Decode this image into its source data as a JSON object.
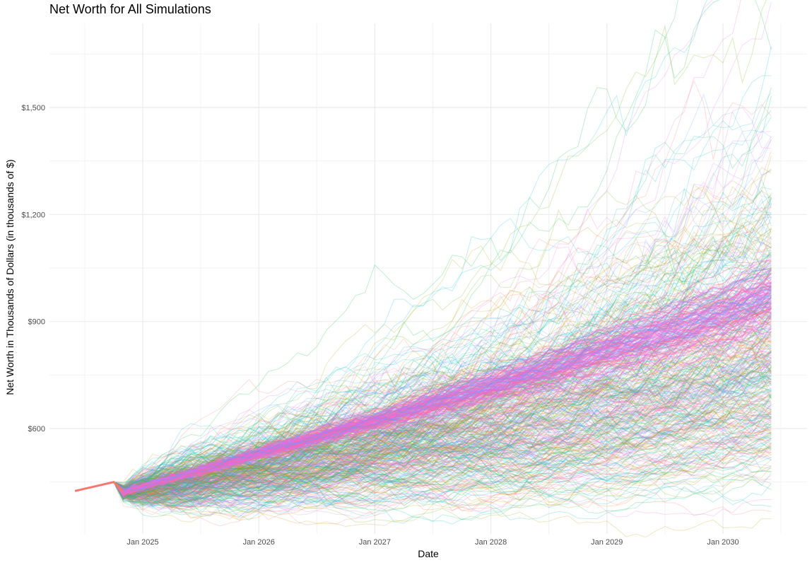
{
  "chart_data": {
    "type": "line",
    "title": "Net Worth for All Simulations",
    "xlabel": "Date",
    "ylabel": "Net Worth in Thousands of Dollars (in thousands of $)",
    "x_ticks": [
      "Jan 2025",
      "Jan 2026",
      "Jan 2027",
      "Jan 2028",
      "Jan 2029",
      "Jan 2030"
    ],
    "y_ticks": [
      "$600",
      "$900",
      "$1,200",
      "$1,500"
    ],
    "y_tick_values": [
      600,
      900,
      1200,
      1500
    ],
    "x_range": [
      "2024-06",
      "2030-07"
    ],
    "ylim": [
      380,
      1700
    ],
    "grid": true,
    "legend": "none",
    "num_simulations_shown": "hundreds (approximate; many overlapping semi-transparent lines)",
    "palette": [
      "#F8766D",
      "#E58700",
      "#C99800",
      "#A3A500",
      "#6BB100",
      "#00BA38",
      "#00BF7D",
      "#00C0AF",
      "#00BCD8",
      "#00B0F6",
      "#619CFF",
      "#B983FF",
      "#E76BF3",
      "#FD61D1",
      "#FF67A4"
    ],
    "summary_series": [
      {
        "name": "median (approx)",
        "x": [
          "2024-06",
          "2024-10",
          "2024-11",
          "2025-06",
          "2026-01",
          "2027-01",
          "2028-01",
          "2029-01",
          "2030-01",
          "2030-06"
        ],
        "values": [
          425,
          450,
          422,
          475,
          530,
          620,
          715,
          815,
          915,
          970
        ]
      },
      {
        "name": "upper band (approx)",
        "x": [
          "2024-06",
          "2024-10",
          "2024-11",
          "2025-06",
          "2026-01",
          "2027-01",
          "2028-01",
          "2029-01",
          "2030-01",
          "2030-06"
        ],
        "values": [
          425,
          452,
          455,
          540,
          640,
          810,
          980,
          1180,
          1400,
          1640
        ]
      },
      {
        "name": "lower band (approx)",
        "x": [
          "2024-06",
          "2024-10",
          "2024-11",
          "2025-06",
          "2026-01",
          "2027-01",
          "2028-01",
          "2029-01",
          "2030-01",
          "2030-06"
        ],
        "values": [
          425,
          448,
          395,
          420,
          455,
          520,
          570,
          620,
          680,
          700
        ]
      }
    ]
  }
}
